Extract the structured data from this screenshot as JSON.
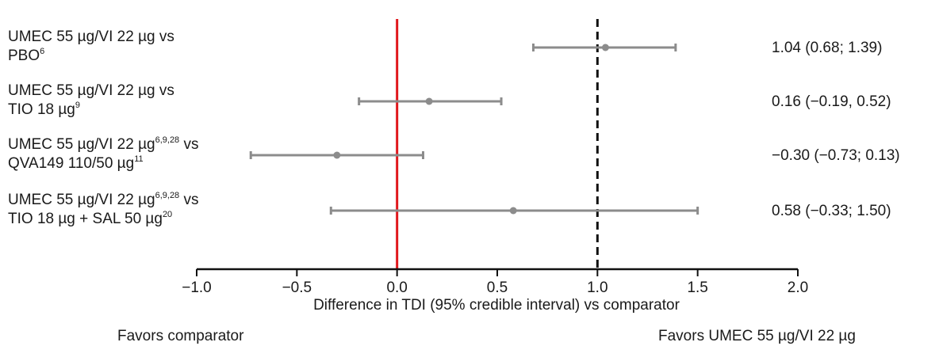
{
  "chart_data": {
    "type": "scatter",
    "subtype": "forest-plot",
    "xlabel": "Difference in TDI (95% credible interval) vs comparator",
    "xlim": [
      -1.0,
      2.0
    ],
    "xticks": [
      "−1.0",
      "−0.5",
      "0.0",
      "0.5",
      "1.0",
      "1.5",
      "2.0"
    ],
    "xtick_values": [
      -1.0,
      -0.5,
      0.0,
      0.5,
      1.0,
      1.5,
      2.0
    ],
    "grid": false,
    "reference_lines": [
      {
        "x": 0.0,
        "style": "solid",
        "color": "#e0161b"
      },
      {
        "x": 1.0,
        "style": "dashed",
        "color": "#111111"
      }
    ],
    "favors_left": "Favors comparator",
    "favors_right": "Favors UMEC 55 µg/VI 22 µg",
    "marker_color": "#8c8c8c",
    "rows": [
      {
        "line1": "UMEC 55 µg/VI 22 µg vs",
        "line1_sup": "",
        "line2": "PBO",
        "line2_sup": "6",
        "estimate": 1.04,
        "lower": 0.68,
        "upper": 1.39,
        "value_label": "1.04 (0.68; 1.39)"
      },
      {
        "line1": "UMEC 55 µg/VI 22 µg vs",
        "line1_sup": "",
        "line2": "TIO 18 µg",
        "line2_sup": "9",
        "estimate": 0.16,
        "lower": -0.19,
        "upper": 0.52,
        "value_label": "0.16 (−0.19, 0.52)"
      },
      {
        "line1": "UMEC 55 µg/VI 22 µg",
        "line1_sup": "6,9,28",
        "line1_tail": " vs",
        "line2": "QVA149 110/50 µg",
        "line2_sup": "11",
        "estimate": -0.3,
        "lower": -0.73,
        "upper": 0.13,
        "value_label": "−0.30 (−0.73; 0.13)"
      },
      {
        "line1": "UMEC 55 µg/VI 22 µg",
        "line1_sup": "6,9,28",
        "line1_tail": " vs",
        "line2": "TIO 18 µg + SAL 50 µg",
        "line2_sup": "20",
        "estimate": 0.58,
        "lower": -0.33,
        "upper": 1.5,
        "value_label": "0.58 (−0.33; 1.50)"
      }
    ]
  }
}
